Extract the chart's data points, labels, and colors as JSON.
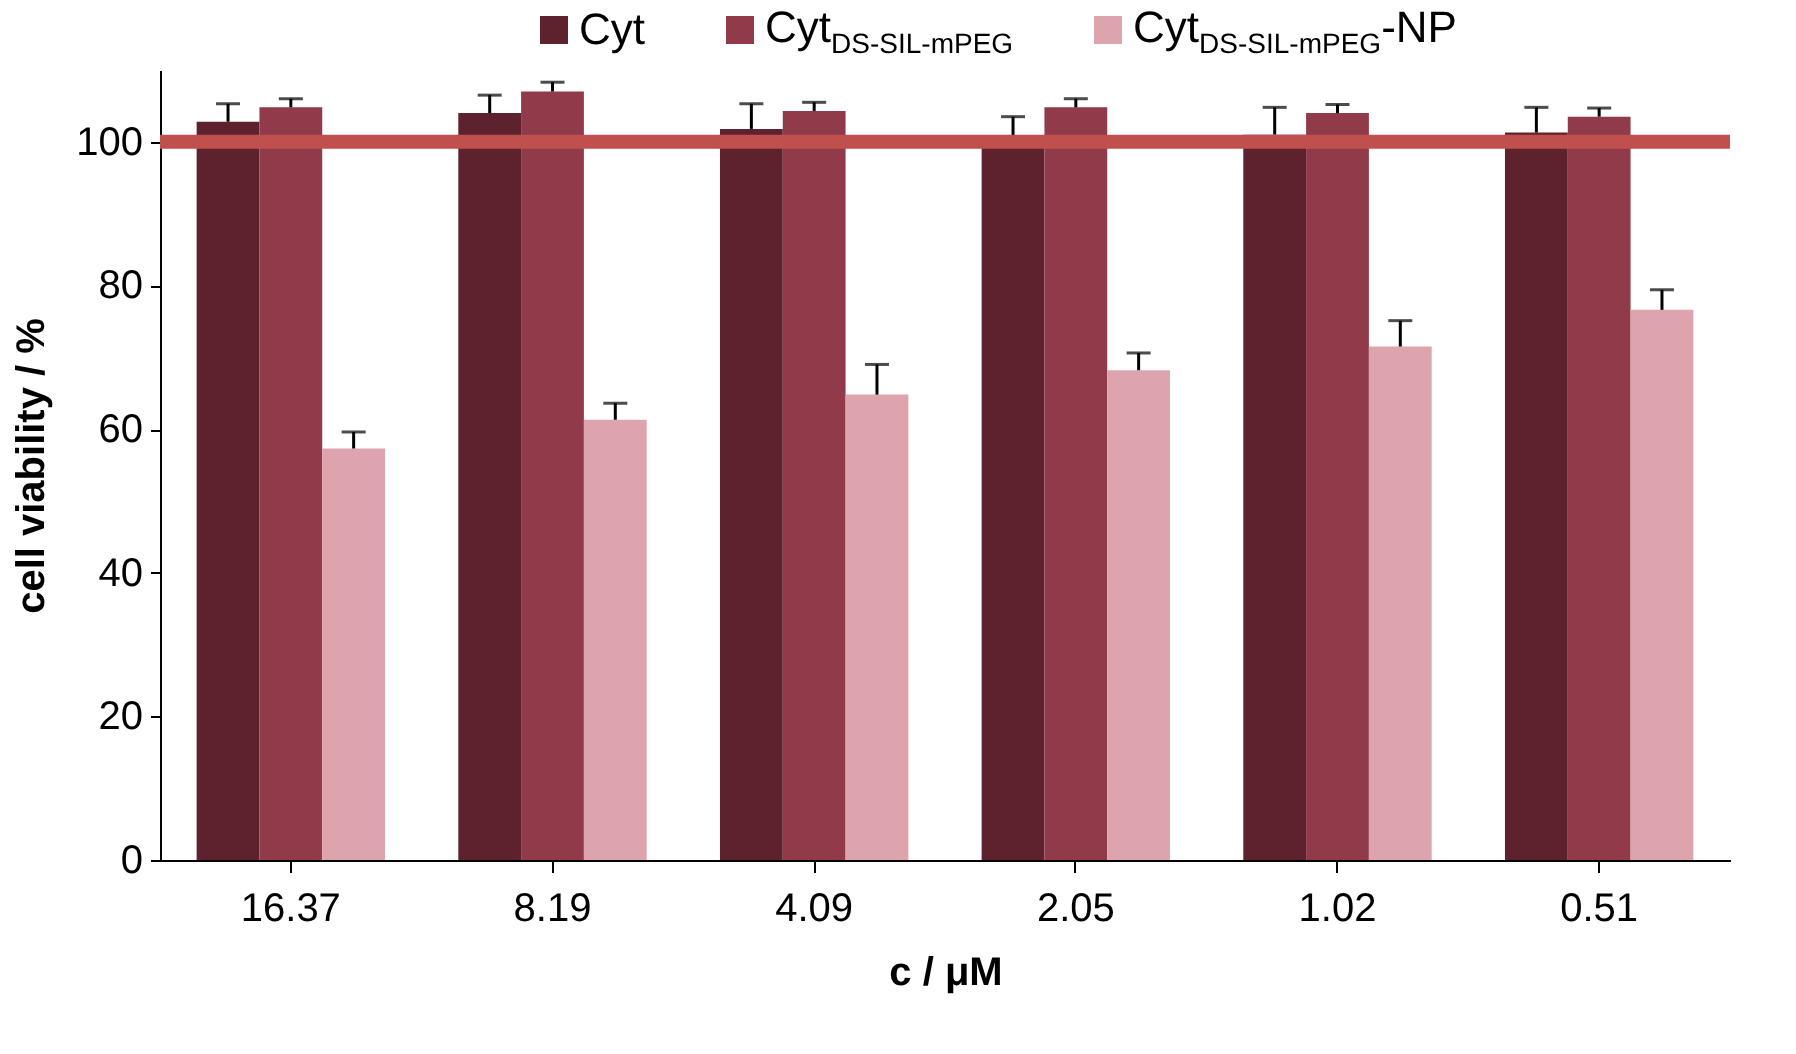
{
  "chart_data": {
    "type": "bar",
    "xlabel": "c / μM",
    "ylabel": "cell viability / %",
    "categories": [
      "16.37",
      "8.19",
      "4.09",
      "2.05",
      "1.02",
      "0.51"
    ],
    "series": [
      {
        "name": "Cyt",
        "color": "#5e222e",
        "values": [
          102.8,
          104,
          101.8,
          100.3,
          101,
          101.3
        ],
        "errors": [
          [
            102.8,
            105.3
          ],
          [
            104,
            106.5
          ],
          [
            101.8,
            105.3
          ],
          [
            100.3,
            103.5
          ],
          [
            101,
            104.8
          ],
          [
            101.3,
            104.8
          ]
        ]
      },
      {
        "name": "Cyt$_{DS-SIL-mPEG}$",
        "color": "#913a4a",
        "values": [
          104.8,
          107,
          104.3,
          104.8,
          104,
          103.5
        ],
        "errors": [
          [
            104.8,
            106
          ],
          [
            107,
            108.3
          ],
          [
            104.3,
            105.5
          ],
          [
            104.8,
            106
          ],
          [
            104,
            105.2
          ],
          [
            103.5,
            104.7
          ]
        ]
      },
      {
        "name": "Cyt$_{DS-SIL-mPEG}$-NP",
        "color": "#dda4ad",
        "values": [
          57.3,
          61.3,
          64.8,
          68.2,
          71.5,
          76.6
        ],
        "errors": [
          [
            57.3,
            59.6
          ],
          [
            61.3,
            63.6
          ],
          [
            64.8,
            69
          ],
          [
            68.2,
            70.6
          ],
          [
            71.5,
            75.1
          ],
          [
            76.6,
            79.4
          ]
        ]
      }
    ],
    "ylim": [
      0,
      110
    ],
    "yticks": [
      0,
      20,
      40,
      60,
      80,
      100
    ],
    "grid": false,
    "legend": "top",
    "ref_lines": [
      {
        "axis": "y",
        "value": 100,
        "color": "#c0504d"
      }
    ]
  }
}
